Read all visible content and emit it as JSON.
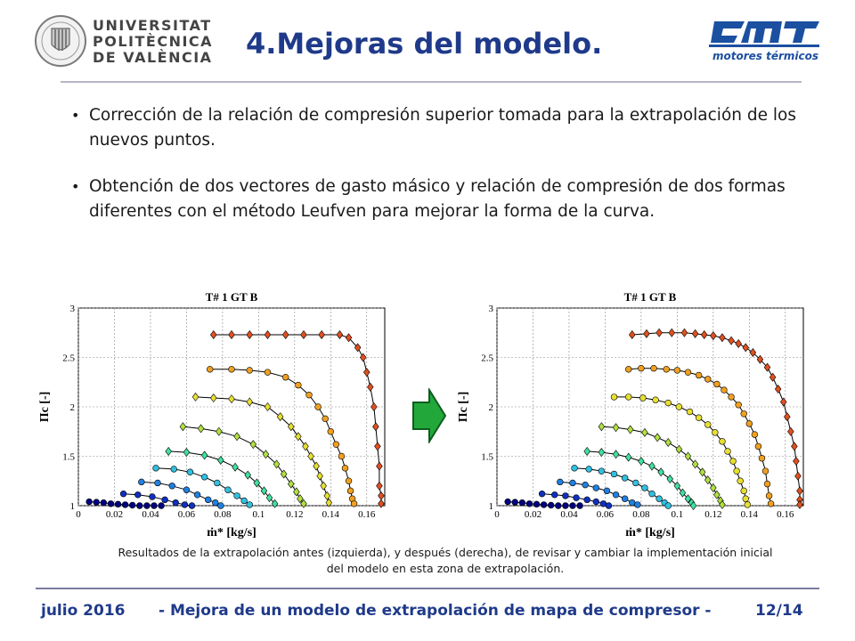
{
  "header": {
    "university_lines": [
      "UNIVERSITAT",
      "POLITÈCNICA",
      "DE VALÈNCIA"
    ],
    "title": "4.Mejoras del modelo.",
    "brand_subtitle": "motores térmicos"
  },
  "bullets": [
    "Corrección de la relación de compresión superior tomada para la extrapolación de los nuevos puntos.",
    "Obtención de dos vectores de gasto másico y relación de compresión de dos formas diferentes con el método Leufven para mejorar la forma de la curva."
  ],
  "colors": {
    "title": "#1f3a8a",
    "arrow": "#22a83a"
  },
  "chart_data": [
    {
      "type": "scatter",
      "title": "T# 1 GT B",
      "xlabel": "ṁ* [kg/s]",
      "ylabel": "Πc [-]",
      "xlim": [
        0,
        0.17
      ],
      "ylim": [
        1,
        3
      ],
      "xticks": [
        "0",
        "0.02",
        "0.04",
        "0.06",
        "0.08",
        "0.1",
        "0.12",
        "0.14",
        "0.16"
      ],
      "yticks": [
        "1",
        "1.5",
        "2",
        "2.5",
        "3"
      ],
      "grid": true,
      "series": [
        {
          "color": "#e05020",
          "x": [
            0.075,
            0.085,
            0.095,
            0.105,
            0.115,
            0.125,
            0.135,
            0.145,
            0.15,
            0.155,
            0.158,
            0.16,
            0.162,
            0.164,
            0.165,
            0.166,
            0.167,
            0.167,
            0.168,
            0.168
          ],
          "y": [
            2.73,
            2.73,
            2.73,
            2.73,
            2.73,
            2.73,
            2.73,
            2.73,
            2.7,
            2.6,
            2.5,
            2.35,
            2.2,
            2.0,
            1.8,
            1.6,
            1.4,
            1.2,
            1.1,
            1.02
          ]
        },
        {
          "color": "#f0a020",
          "x": [
            0.073,
            0.085,
            0.095,
            0.105,
            0.115,
            0.122,
            0.128,
            0.133,
            0.137,
            0.14,
            0.143,
            0.146,
            0.148,
            0.15,
            0.151,
            0.152,
            0.153
          ],
          "y": [
            2.38,
            2.38,
            2.37,
            2.35,
            2.3,
            2.22,
            2.12,
            2.0,
            1.88,
            1.75,
            1.62,
            1.5,
            1.38,
            1.25,
            1.15,
            1.07,
            1.02
          ]
        },
        {
          "color": "#e8e030",
          "x": [
            0.065,
            0.075,
            0.085,
            0.095,
            0.105,
            0.112,
            0.118,
            0.122,
            0.126,
            0.129,
            0.132,
            0.134,
            0.136,
            0.138,
            0.139
          ],
          "y": [
            2.1,
            2.09,
            2.08,
            2.05,
            2.0,
            1.9,
            1.8,
            1.7,
            1.6,
            1.5,
            1.4,
            1.3,
            1.2,
            1.1,
            1.03
          ]
        },
        {
          "color": "#b0e040",
          "x": [
            0.058,
            0.068,
            0.078,
            0.088,
            0.097,
            0.104,
            0.11,
            0.114,
            0.118,
            0.121,
            0.123,
            0.125
          ],
          "y": [
            1.8,
            1.78,
            1.75,
            1.7,
            1.62,
            1.52,
            1.42,
            1.32,
            1.22,
            1.14,
            1.07,
            1.02
          ]
        },
        {
          "color": "#40e0a0",
          "x": [
            0.05,
            0.06,
            0.07,
            0.079,
            0.087,
            0.094,
            0.099,
            0.103,
            0.106,
            0.109
          ],
          "y": [
            1.55,
            1.54,
            1.51,
            1.46,
            1.39,
            1.31,
            1.23,
            1.15,
            1.08,
            1.02
          ]
        },
        {
          "color": "#30c0e0",
          "x": [
            0.043,
            0.053,
            0.062,
            0.07,
            0.077,
            0.083,
            0.088,
            0.092,
            0.095
          ],
          "y": [
            1.38,
            1.37,
            1.34,
            1.29,
            1.23,
            1.16,
            1.1,
            1.05,
            1.01
          ]
        },
        {
          "color": "#2080e0",
          "x": [
            0.035,
            0.044,
            0.052,
            0.06,
            0.066,
            0.072,
            0.076,
            0.079
          ],
          "y": [
            1.24,
            1.23,
            1.2,
            1.16,
            1.11,
            1.06,
            1.03,
            1.0
          ]
        },
        {
          "color": "#1030c0",
          "x": [
            0.025,
            0.033,
            0.041,
            0.048,
            0.054,
            0.059,
            0.063
          ],
          "y": [
            1.12,
            1.11,
            1.09,
            1.06,
            1.03,
            1.01,
            1.0
          ]
        },
        {
          "color": "#000080",
          "x": [
            0.006,
            0.01,
            0.014,
            0.018,
            0.022,
            0.026,
            0.03,
            0.034,
            0.038,
            0.042,
            0.046
          ],
          "y": [
            1.04,
            1.035,
            1.03,
            1.02,
            1.015,
            1.01,
            1.005,
            1.0,
            1.0,
            1.0,
            1.0
          ]
        }
      ]
    },
    {
      "type": "scatter",
      "title": "T# 1 GT B",
      "xlabel": "ṁ* [kg/s]",
      "ylabel": "Πc [-]",
      "xlim": [
        0,
        0.17
      ],
      "ylim": [
        1,
        3
      ],
      "xticks": [
        "0",
        "0.02",
        "0.04",
        "0.06",
        "0.08",
        "0.1",
        "0.12",
        "0.14",
        "0.16"
      ],
      "yticks": [
        "1",
        "1.5",
        "2",
        "2.5",
        "3"
      ],
      "grid": true,
      "series": [
        {
          "color": "#e05020",
          "x": [
            0.075,
            0.083,
            0.09,
            0.097,
            0.104,
            0.11,
            0.115,
            0.12,
            0.125,
            0.13,
            0.134,
            0.138,
            0.142,
            0.146,
            0.15,
            0.153,
            0.156,
            0.159,
            0.161,
            0.163,
            0.165,
            0.166,
            0.167,
            0.168,
            0.168,
            0.168
          ],
          "y": [
            2.73,
            2.74,
            2.75,
            2.75,
            2.75,
            2.74,
            2.73,
            2.72,
            2.7,
            2.67,
            2.64,
            2.6,
            2.55,
            2.48,
            2.4,
            2.3,
            2.18,
            2.05,
            1.9,
            1.75,
            1.6,
            1.45,
            1.3,
            1.15,
            1.06,
            1.01
          ]
        },
        {
          "color": "#f0a020",
          "x": [
            0.073,
            0.08,
            0.087,
            0.094,
            0.1,
            0.106,
            0.112,
            0.117,
            0.122,
            0.126,
            0.13,
            0.134,
            0.137,
            0.14,
            0.143,
            0.145,
            0.147,
            0.149,
            0.15,
            0.151,
            0.152
          ],
          "y": [
            2.38,
            2.39,
            2.39,
            2.38,
            2.37,
            2.35,
            2.32,
            2.28,
            2.23,
            2.17,
            2.1,
            2.02,
            1.93,
            1.83,
            1.72,
            1.6,
            1.48,
            1.35,
            1.22,
            1.1,
            1.02
          ]
        },
        {
          "color": "#e8e030",
          "x": [
            0.065,
            0.073,
            0.081,
            0.088,
            0.095,
            0.101,
            0.107,
            0.112,
            0.117,
            0.121,
            0.125,
            0.128,
            0.131,
            0.133,
            0.135,
            0.137,
            0.138,
            0.139
          ],
          "y": [
            2.1,
            2.1,
            2.09,
            2.07,
            2.04,
            2.0,
            1.95,
            1.89,
            1.82,
            1.74,
            1.65,
            1.55,
            1.45,
            1.35,
            1.25,
            1.15,
            1.07,
            1.01
          ]
        },
        {
          "color": "#b0e040",
          "x": [
            0.058,
            0.066,
            0.074,
            0.082,
            0.089,
            0.095,
            0.101,
            0.106,
            0.11,
            0.114,
            0.117,
            0.12,
            0.122,
            0.124,
            0.125
          ],
          "y": [
            1.8,
            1.79,
            1.77,
            1.74,
            1.69,
            1.64,
            1.57,
            1.5,
            1.42,
            1.34,
            1.26,
            1.18,
            1.11,
            1.05,
            1.01
          ]
        },
        {
          "color": "#40e0a0",
          "x": [
            0.05,
            0.058,
            0.066,
            0.073,
            0.08,
            0.086,
            0.091,
            0.096,
            0.1,
            0.103,
            0.106,
            0.108,
            0.109
          ],
          "y": [
            1.55,
            1.54,
            1.52,
            1.49,
            1.45,
            1.4,
            1.34,
            1.27,
            1.2,
            1.13,
            1.07,
            1.03,
            1.0
          ]
        },
        {
          "color": "#30c0e0",
          "x": [
            0.043,
            0.051,
            0.058,
            0.065,
            0.071,
            0.077,
            0.082,
            0.086,
            0.09,
            0.093,
            0.095
          ],
          "y": [
            1.38,
            1.37,
            1.35,
            1.32,
            1.28,
            1.23,
            1.18,
            1.12,
            1.07,
            1.03,
            1.0
          ]
        },
        {
          "color": "#2080e0",
          "x": [
            0.035,
            0.042,
            0.049,
            0.055,
            0.061,
            0.066,
            0.071,
            0.075,
            0.078
          ],
          "y": [
            1.24,
            1.23,
            1.21,
            1.18,
            1.15,
            1.11,
            1.07,
            1.03,
            1.01
          ]
        },
        {
          "color": "#1030c0",
          "x": [
            0.025,
            0.032,
            0.038,
            0.044,
            0.05,
            0.055,
            0.059,
            0.062
          ],
          "y": [
            1.12,
            1.11,
            1.1,
            1.08,
            1.06,
            1.04,
            1.02,
            1.0
          ]
        },
        {
          "color": "#000080",
          "x": [
            0.006,
            0.01,
            0.014,
            0.018,
            0.022,
            0.026,
            0.03,
            0.034,
            0.038,
            0.042,
            0.046
          ],
          "y": [
            1.04,
            1.035,
            1.03,
            1.02,
            1.015,
            1.01,
            1.005,
            1.0,
            1.0,
            1.0,
            1.0
          ]
        }
      ]
    }
  ],
  "caption": {
    "line1": "Resultados de la extrapolación antes (izquierda), y después (derecha), de revisar y cambiar la implementación inicial",
    "line2": "del modelo en esta zona de extrapolación."
  },
  "footer": {
    "date": "julio 2016",
    "topic": "- Mejora de un modelo de extrapolación de mapa de compresor -",
    "page": "12/14"
  }
}
